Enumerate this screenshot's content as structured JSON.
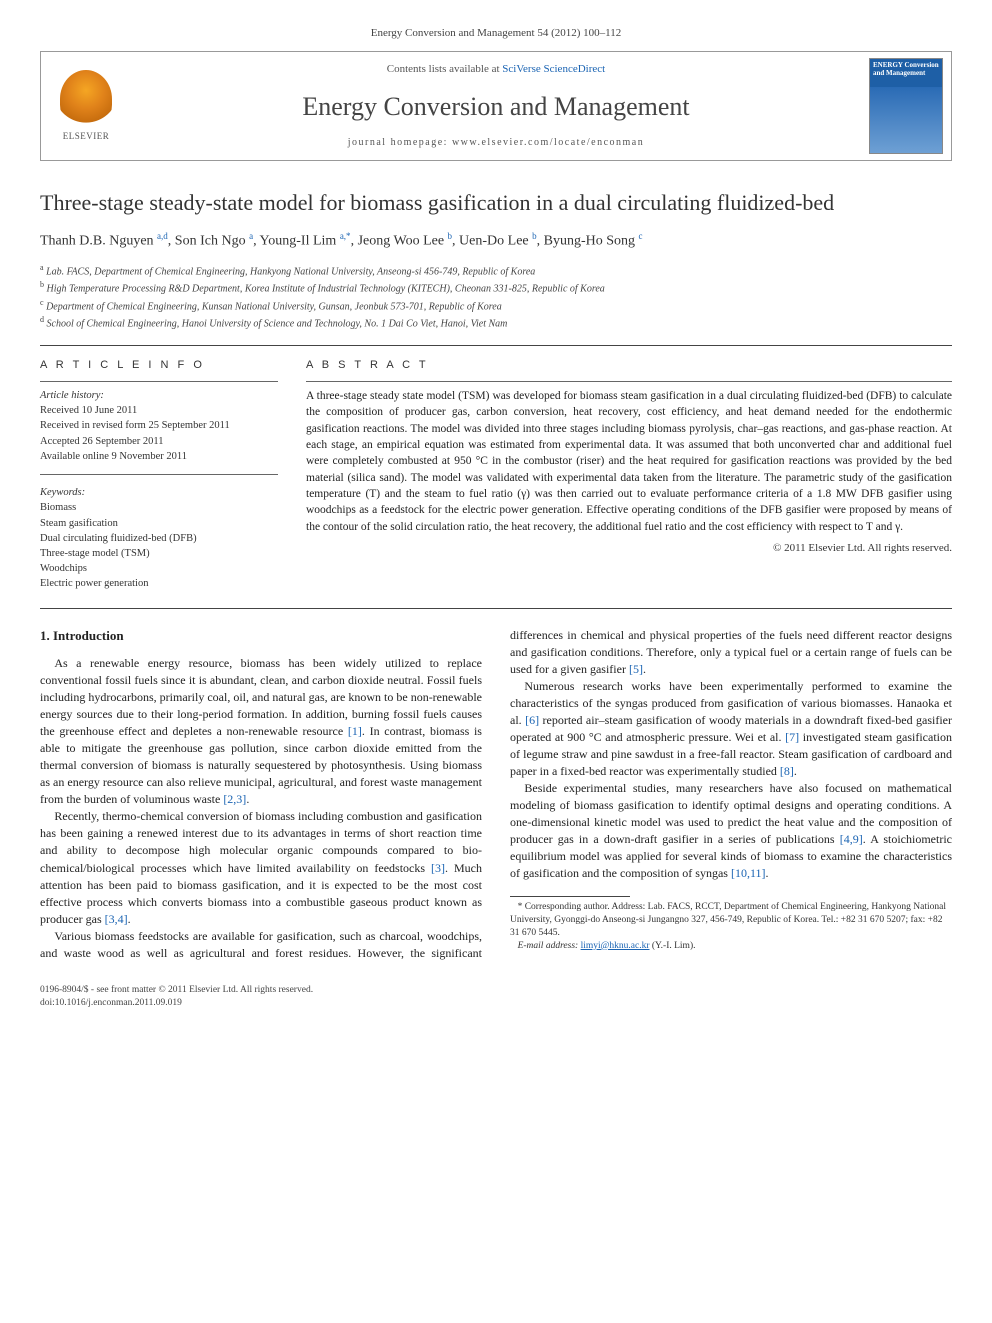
{
  "citation": "Energy Conversion and Management 54 (2012) 100–112",
  "header": {
    "logo_label": "ELSEVIER",
    "contents_prefix": "Contents lists available at ",
    "contents_link": "SciVerse ScienceDirect",
    "journal_name": "Energy Conversion and Management",
    "homepage_prefix": "journal homepage: ",
    "homepage_url": "www.elsevier.com/locate/enconman",
    "cover_title": "ENERGY Conversion and Management"
  },
  "title": "Three-stage steady-state model for biomass gasification in a dual circulating fluidized-bed",
  "authors_html": "Thanh D.B. Nguyen <sup>a,d</sup>, Son Ich Ngo <sup>a</sup>, Young-Il Lim <sup>a,*</sup>, Jeong Woo Lee <sup>b</sup>, Uen-Do Lee <sup>b</sup>, Byung-Ho Song <sup>c</sup>",
  "affiliations": [
    "a Lab. FACS, Department of Chemical Engineering, Hankyong National University, Anseong-si 456-749, Republic of Korea",
    "b High Temperature Processing R&D Department, Korea Institute of Industrial Technology (KITECH), Cheonan 331-825, Republic of Korea",
    "c Department of Chemical Engineering, Kunsan National University, Gunsan, Jeonbuk 573-701, Republic of Korea",
    "d School of Chemical Engineering, Hanoi University of Science and Technology, No. 1 Dai Co Viet, Hanoi, Viet Nam"
  ],
  "article_info": {
    "heading": "A R T I C L E   I N F O",
    "history_label": "Article history:",
    "history": [
      "Received 10 June 2011",
      "Received in revised form 25 September 2011",
      "Accepted 26 September 2011",
      "Available online 9 November 2011"
    ],
    "keywords_label": "Keywords:",
    "keywords": [
      "Biomass",
      "Steam gasification",
      "Dual circulating fluidized-bed (DFB)",
      "Three-stage model (TSM)",
      "Woodchips",
      "Electric power generation"
    ]
  },
  "abstract": {
    "heading": "A B S T R A C T",
    "text": "A three-stage steady state model (TSM) was developed for biomass steam gasification in a dual circulating fluidized-bed (DFB) to calculate the composition of producer gas, carbon conversion, heat recovery, cost efficiency, and heat demand needed for the endothermic gasification reactions. The model was divided into three stages including biomass pyrolysis, char–gas reactions, and gas-phase reaction. At each stage, an empirical equation was estimated from experimental data. It was assumed that both unconverted char and additional fuel were completely combusted at 950 °C in the combustor (riser) and the heat required for gasification reactions was provided by the bed material (silica sand). The model was validated with experimental data taken from the literature. The parametric study of the gasification temperature (T) and the steam to fuel ratio (γ) was then carried out to evaluate performance criteria of a 1.8 MW DFB gasifier using woodchips as a feedstock for the electric power generation. Effective operating conditions of the DFB gasifier were proposed by means of the contour of the solid circulation ratio, the heat recovery, the additional fuel ratio and the cost efficiency with respect to T and γ.",
    "copyright": "© 2011 Elsevier Ltd. All rights reserved."
  },
  "body": {
    "section_heading": "1. Introduction",
    "paragraphs": [
      "As a renewable energy resource, biomass has been widely utilized to replace conventional fossil fuels since it is abundant, clean, and carbon dioxide neutral. Fossil fuels including hydrocarbons, primarily coal, oil, and natural gas, are known to be non-renewable energy sources due to their long-period formation. In addition, burning fossil fuels causes the greenhouse effect and depletes a non-renewable resource [1]. In contrast, biomass is able to mitigate the greenhouse gas pollution, since carbon dioxide emitted from the thermal conversion of biomass is naturally sequestered by photosynthesis. Using biomass as an energy resource can also relieve municipal, agricultural, and forest waste management from the burden of voluminous waste [2,3].",
      "Recently, thermo-chemical conversion of biomass including combustion and gasification has been gaining a renewed interest due to its advantages in terms of short reaction time and ability to decompose high molecular organic compounds compared to bio-chemical/biological processes which have limited availability on feedstocks [3]. Much attention has been paid to biomass gasification, and it is expected to be the most cost effective process which converts biomass into a combustible gaseous product known as producer gas [3,4].",
      "Various biomass feedstocks are available for gasification, such as charcoal, woodchips, and waste wood as well as agricultural and forest residues. However, the significant differences in chemical and physical properties of the fuels need different reactor designs and gasification conditions. Therefore, only a typical fuel or a certain range of fuels can be used for a given gasifier [5].",
      "Numerous research works have been experimentally performed to examine the characteristics of the syngas produced from gasification of various biomasses. Hanaoka et al. [6] reported air–steam gasification of woody materials in a downdraft fixed-bed gasifier operated at 900 °C and atmospheric pressure. Wei et al. [7] investigated steam gasification of legume straw and pine sawdust in a free-fall reactor. Steam gasification of cardboard and paper in a fixed-bed reactor was experimentally studied [8].",
      "Beside experimental studies, many researchers have also focused on mathematical modeling of biomass gasification to identify optimal designs and operating conditions. A one-dimensional kinetic model was used to predict the heat value and the composition of producer gas in a down-draft gasifier in a series of publications [4,9]. A stoichiometric equilibrium model was applied for several kinds of biomass to examine the characteristics of gasification and the composition of syngas [10,11]."
    ]
  },
  "footnote": {
    "corr": "* Corresponding author. Address: Lab. FACS, RCCT, Department of Chemical Engineering, Hankyong National University, Gyonggi-do Anseong-si Jungangno 327, 456-749, Republic of Korea. Tel.: +82 31 670 5207; fax: +82 31 670 5445.",
    "email_label": "E-mail address:",
    "email": "limyi@hknu.ac.kr",
    "email_who": "(Y.-I. Lim)."
  },
  "footer": {
    "line1": "0196-8904/$ - see front matter © 2011 Elsevier Ltd. All rights reserved.",
    "line2": "doi:10.1016/j.enconman.2011.09.019"
  },
  "colors": {
    "link": "#1b64b3",
    "text": "#222222",
    "muted": "#555555",
    "rule": "#444444"
  }
}
